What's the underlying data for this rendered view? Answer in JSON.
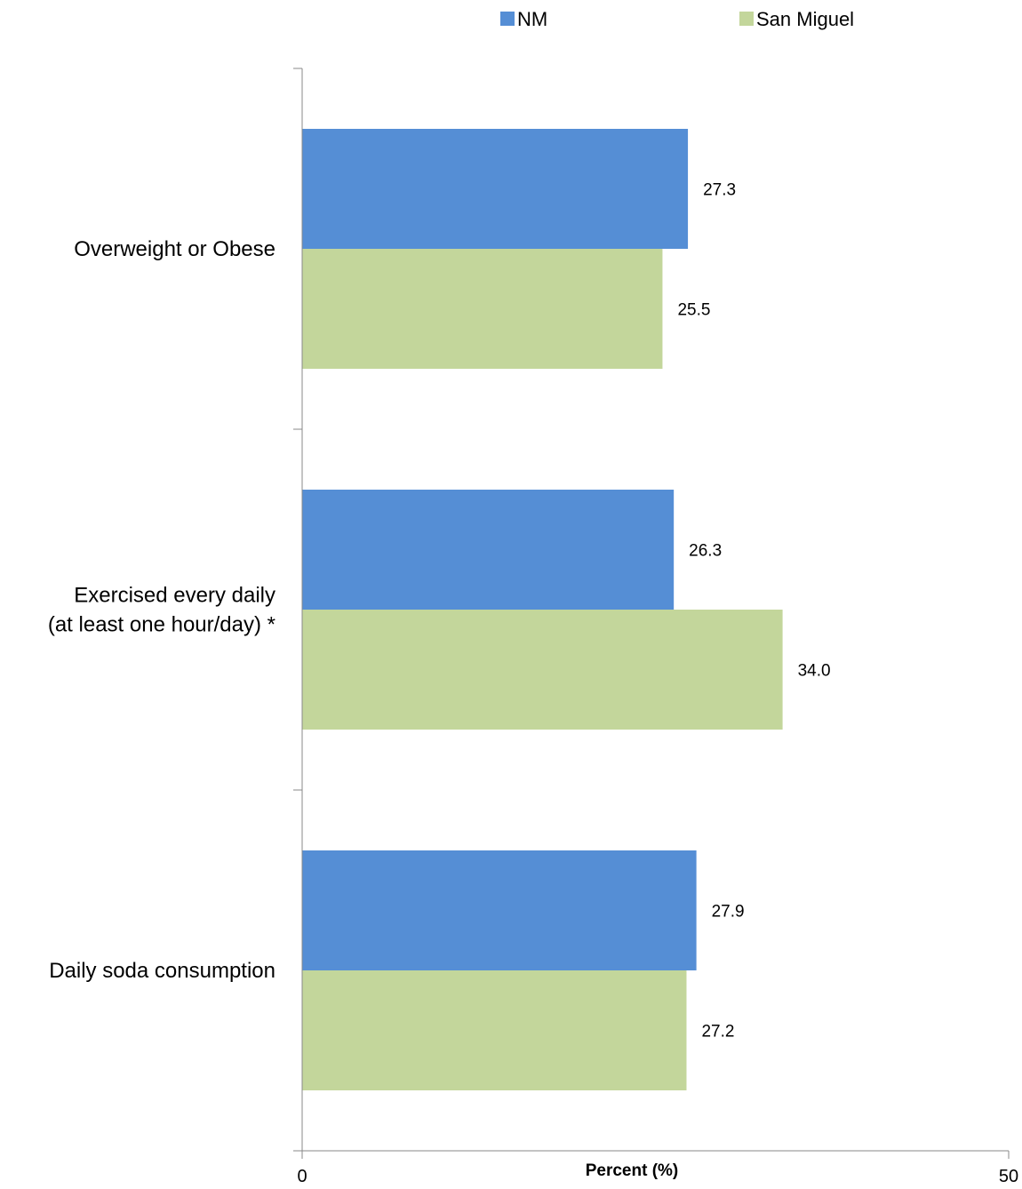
{
  "chart_data": {
    "type": "bar",
    "orientation": "horizontal",
    "categories": [
      [
        "Overweight or Obese"
      ],
      [
        "Exercised every daily",
        "(at least one hour/day) *"
      ],
      [
        "Daily soda consumption"
      ]
    ],
    "series": [
      {
        "name": "NM",
        "color": "#558ed5",
        "values": [
          27.3,
          26.3,
          27.9
        ]
      },
      {
        "name": "San Miguel",
        "color": "#c3d69b",
        "values": [
          25.5,
          34.0,
          27.2
        ]
      }
    ],
    "value_labels": [
      [
        "27.3",
        "26.3",
        "27.9"
      ],
      [
        "25.5",
        "34.0",
        "27.2"
      ]
    ],
    "xlabel": "Percent (%)",
    "xlim": [
      0,
      50
    ],
    "x_ticks": [
      "0",
      "50"
    ],
    "legend_position": "top",
    "grid": false
  }
}
